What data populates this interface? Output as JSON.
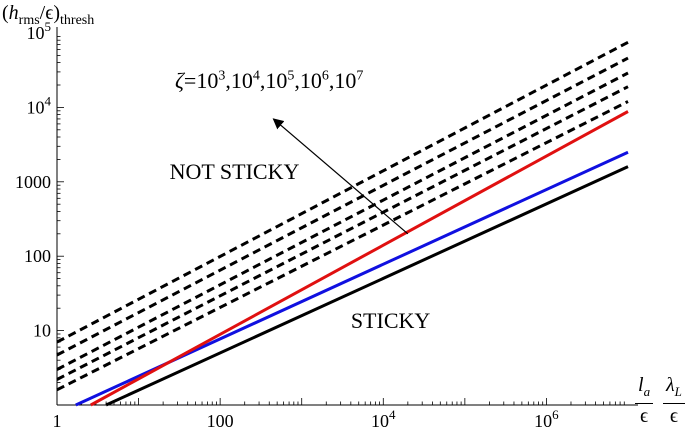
{
  "chart_data": {
    "type": "line",
    "xscale": "log",
    "yscale": "log",
    "xlim": [
      1,
      10000000
    ],
    "ylim": [
      1,
      100000
    ],
    "xlabel": {
      "frac1_num": "l",
      "frac1_num_sub": "a",
      "frac1_den": "ϵ",
      "frac2_num": "λ",
      "frac2_num_sub": "L",
      "frac2_den": "ϵ"
    },
    "ylabel": {
      "open": "(",
      "h": "h",
      "sub_rms": "rms",
      "slash": "/",
      "eps": "ϵ",
      "close": ")",
      "sub_thresh": "thresh"
    },
    "x_ticks": [
      {
        "value": 1,
        "base": "1",
        "exp": ""
      },
      {
        "value": 100,
        "base": "100",
        "exp": ""
      },
      {
        "value": 10000,
        "base": "10",
        "exp": "4"
      },
      {
        "value": 1000000,
        "base": "10",
        "exp": "6"
      }
    ],
    "y_ticks": [
      {
        "value": 10,
        "base": "10",
        "exp": ""
      },
      {
        "value": 100,
        "base": "100",
        "exp": ""
      },
      {
        "value": 1000,
        "base": "1000",
        "exp": ""
      },
      {
        "value": 10000,
        "base": "10",
        "exp": "4"
      },
      {
        "value": 100000,
        "base": "10",
        "exp": "5"
      }
    ],
    "series": [
      {
        "style": "black-solid",
        "color": "#000000",
        "dash": false,
        "x": [
          4,
          10000000
        ],
        "y": [
          1,
          1600
        ]
      },
      {
        "style": "blue-solid",
        "color": "#1010e0",
        "dash": false,
        "x": [
          1.7,
          10000000
        ],
        "y": [
          1,
          2500
        ]
      },
      {
        "style": "red-solid",
        "color": "#e01010",
        "dash": false,
        "x": [
          2.6,
          10000000
        ],
        "y": [
          1,
          8800
        ]
      },
      {
        "style": "black-dashed-1",
        "color": "#000000",
        "dash": true,
        "x": [
          1,
          10000000
        ],
        "y": [
          1.6,
          12000
        ]
      },
      {
        "style": "black-dashed-2",
        "color": "#000000",
        "dash": true,
        "x": [
          1,
          10000000
        ],
        "y": [
          2.2,
          19000
        ]
      },
      {
        "style": "black-dashed-3",
        "color": "#000000",
        "dash": true,
        "x": [
          1,
          10000000
        ],
        "y": [
          3.0,
          29000
        ]
      },
      {
        "style": "black-dashed-4",
        "color": "#000000",
        "dash": true,
        "x": [
          1,
          10000000
        ],
        "y": [
          4.7,
          46000
        ]
      },
      {
        "style": "black-dashed-5",
        "color": "#000000",
        "dash": true,
        "x": [
          1,
          10000000
        ],
        "y": [
          7.0,
          75000
        ]
      }
    ],
    "annotations": {
      "not_sticky": "NOT STICKY",
      "sticky": "STICKY",
      "zeta_label": {
        "zeta": "ζ",
        "eq": "=",
        "base": "10",
        "exps": [
          "3",
          "4",
          "5",
          "6",
          "7"
        ],
        "sep": ","
      },
      "arrow": {
        "from": [
          20000,
          200
        ],
        "to": [
          450,
          7000
        ]
      }
    },
    "annotation_anchors": {
      "not_sticky": [
        24,
        1300
      ],
      "sticky": [
        4000,
        13
      ]
    },
    "grid": false
  }
}
